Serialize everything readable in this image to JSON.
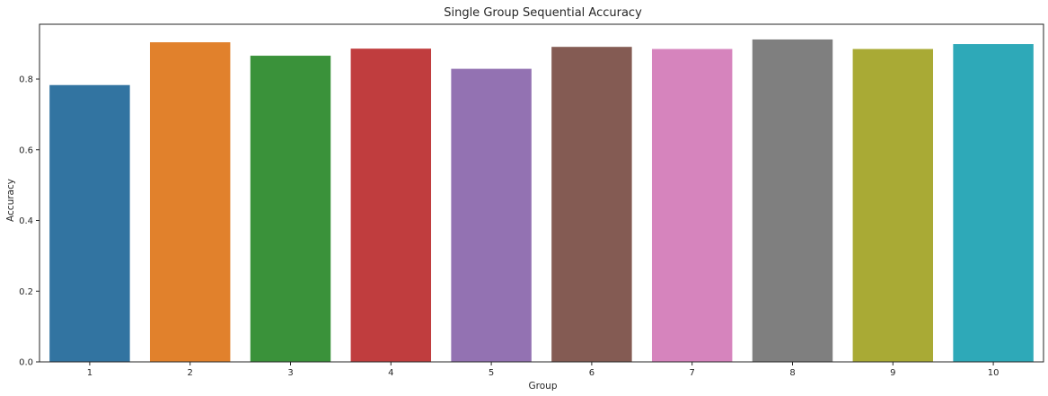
{
  "chart_data": {
    "type": "bar",
    "title": "Single Group Sequential Accuracy",
    "xlabel": "Group",
    "ylabel": "Accuracy",
    "categories": [
      "1",
      "2",
      "3",
      "4",
      "5",
      "6",
      "7",
      "8",
      "9",
      "10"
    ],
    "values": [
      0.783,
      0.904,
      0.866,
      0.886,
      0.829,
      0.891,
      0.885,
      0.912,
      0.885,
      0.899
    ],
    "colors": [
      "#3274a1",
      "#e1812c",
      "#3a923a",
      "#c03d3e",
      "#9372b2",
      "#845b53",
      "#d684bd",
      "#7f7f7f",
      "#a9aa35",
      "#2ea9b8"
    ],
    "ylim": [
      0,
      0.955
    ],
    "yticks": [
      0.0,
      0.2,
      0.4,
      0.6,
      0.8
    ],
    "ytick_labels": [
      "0.0",
      "0.2",
      "0.4",
      "0.6",
      "0.8"
    ],
    "grid": false,
    "legend": "none"
  }
}
